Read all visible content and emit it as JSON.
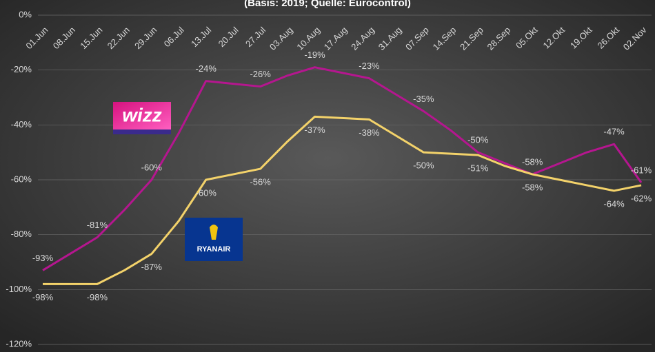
{
  "chart_data": {
    "type": "line",
    "subtitle": "(Basis: 2019; Quelle: Eurocontrol)",
    "categories": [
      "01.Jun",
      "08.Jun",
      "15.Jun",
      "22.Jun",
      "29.Jun",
      "06.Jul",
      "13.Jul",
      "20.Jul",
      "27.Jul",
      "03.Aug",
      "10.Aug",
      "17.Aug",
      "24.Aug",
      "31.Aug",
      "07.Sep",
      "14.Sep",
      "21.Sep",
      "28.Sep",
      "05.Okt",
      "12.Okt",
      "19.Okt",
      "26.Okt",
      "02.Nov"
    ],
    "series": [
      {
        "name": "wizz",
        "color": "#b5168f",
        "values": [
          -93,
          -87,
          -81,
          -71,
          -60,
          -43,
          -24,
          -25,
          -26,
          -22,
          -19,
          -21,
          -23,
          -29,
          -35,
          -42,
          -50,
          -54,
          -58,
          -54,
          -50,
          -47,
          -61
        ],
        "value_labels": [
          "-93%",
          null,
          "-81%",
          null,
          "-60%",
          null,
          "-24%",
          null,
          "-26%",
          null,
          "-19%",
          null,
          "-23%",
          null,
          "-35%",
          null,
          "-50%",
          null,
          "-58%",
          null,
          null,
          "-47%",
          "-61%"
        ]
      },
      {
        "name": "RYANAIR",
        "color": "#f3d26a",
        "values": [
          -98,
          -98,
          -98,
          -93,
          -87,
          -75,
          -60,
          -58,
          -56,
          -46,
          -37,
          -37.5,
          -38,
          -44,
          -50,
          -50.5,
          -51,
          -55,
          -58,
          -60,
          -62,
          -64,
          -62
        ],
        "value_labels": [
          "-98%",
          null,
          "-98%",
          null,
          "-87%",
          null,
          "-60%",
          null,
          "-56%",
          null,
          "-37%",
          null,
          "-38%",
          null,
          "-50%",
          null,
          "-51%",
          null,
          "-58%",
          null,
          null,
          "-64%",
          "-62%"
        ]
      }
    ],
    "ylim": [
      -120,
      0
    ],
    "yticks": [
      {
        "value": 0,
        "label": "0%"
      },
      {
        "value": -20,
        "label": "-20%"
      },
      {
        "value": -40,
        "label": "-40%"
      },
      {
        "value": -60,
        "label": "-60%"
      },
      {
        "value": -80,
        "label": "-80%"
      },
      {
        "value": -100,
        "label": "-100%"
      },
      {
        "value": -120,
        "label": "-120%"
      }
    ],
    "grid": true
  }
}
